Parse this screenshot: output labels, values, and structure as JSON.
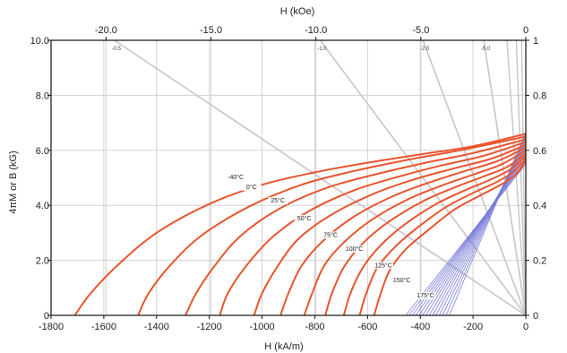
{
  "chart_data": {
    "type": "line",
    "title": "",
    "xlabel_bottom": "H (kA/m)",
    "xlabel_top": "H (kOe)",
    "ylabel_left": "4πM or B (kG)",
    "ylabel_right": "",
    "x_bottom_range": [
      -1800,
      0
    ],
    "x_bottom_ticks": [
      -1800,
      -1600,
      -1400,
      -1200,
      -1000,
      -800,
      -600,
      -400,
      -200,
      0
    ],
    "x_top_range": [
      -22.62,
      0
    ],
    "x_top_ticks": [
      -20.0,
      -15.0,
      -10.0,
      -5.0,
      0
    ],
    "x_top_tick_labels": [
      "-20.0",
      "-15.0",
      "-10.0",
      "-5.0",
      "0"
    ],
    "y_left_range": [
      0,
      10
    ],
    "y_left_ticks": [
      0,
      2,
      4,
      6,
      8,
      10
    ],
    "y_left_tick_labels": [
      "0",
      "2.0",
      "4.0",
      "6.0",
      "8.0",
      "10.0"
    ],
    "y_right_range": [
      0,
      1
    ],
    "y_right_ticks": [
      0,
      0.2,
      0.4,
      0.6,
      0.8,
      1
    ],
    "y_right_tick_labels": [
      "0",
      "0.2",
      "0.4",
      "0.6",
      "0.8",
      "1"
    ],
    "grid": true,
    "load_line_labels": [
      {
        "text": "-0.5",
        "x_koe": -19.6
      },
      {
        "text": "-1.0",
        "x_koe": -9.8
      },
      {
        "text": "-2.0",
        "x_koe": -4.9
      },
      {
        "text": "-5.0",
        "x_koe": -2.0
      }
    ],
    "intrinsic_series": [
      {
        "name": "-40°C",
        "label_at": [
          -1100,
          4.95
        ],
        "points": [
          [
            -1710,
            0
          ],
          [
            -1650,
            0.8
          ],
          [
            -1550,
            1.8
          ],
          [
            -1400,
            3.0
          ],
          [
            -1200,
            4.05
          ],
          [
            -1000,
            4.75
          ],
          [
            -800,
            5.2
          ],
          [
            -600,
            5.55
          ],
          [
            -400,
            5.85
          ],
          [
            -200,
            6.15
          ],
          [
            0,
            6.6
          ]
        ]
      },
      {
        "name": "0°C",
        "label_at": [
          -1040,
          4.6
        ],
        "points": [
          [
            -1470,
            0
          ],
          [
            -1430,
            0.8
          ],
          [
            -1350,
            1.8
          ],
          [
            -1230,
            2.9
          ],
          [
            -1050,
            3.95
          ],
          [
            -850,
            4.75
          ],
          [
            -650,
            5.25
          ],
          [
            -450,
            5.65
          ],
          [
            -250,
            6.0
          ],
          [
            0,
            6.5
          ]
        ]
      },
      {
        "name": "25°C",
        "label_at": [
          -940,
          4.1
        ],
        "points": [
          [
            -1290,
            0
          ],
          [
            -1250,
            0.8
          ],
          [
            -1180,
            1.8
          ],
          [
            -1080,
            2.9
          ],
          [
            -930,
            3.9
          ],
          [
            -750,
            4.65
          ],
          [
            -560,
            5.15
          ],
          [
            -380,
            5.55
          ],
          [
            -200,
            5.9
          ],
          [
            0,
            6.4
          ]
        ]
      },
      {
        "name": "50°C",
        "label_at": [
          -840,
          3.45
        ],
        "points": [
          [
            -1160,
            0
          ],
          [
            -1130,
            0.8
          ],
          [
            -1060,
            1.8
          ],
          [
            -960,
            2.85
          ],
          [
            -820,
            3.8
          ],
          [
            -650,
            4.55
          ],
          [
            -480,
            5.05
          ],
          [
            -320,
            5.45
          ],
          [
            -160,
            5.8
          ],
          [
            0,
            6.3
          ]
        ]
      },
      {
        "name": "75°C",
        "label_at": [
          -740,
          2.85
        ],
        "points": [
          [
            -1030,
            0
          ],
          [
            -1000,
            0.8
          ],
          [
            -940,
            1.8
          ],
          [
            -860,
            2.8
          ],
          [
            -730,
            3.7
          ],
          [
            -570,
            4.45
          ],
          [
            -420,
            4.95
          ],
          [
            -270,
            5.35
          ],
          [
            -130,
            5.7
          ],
          [
            0,
            6.2
          ]
        ]
      },
      {
        "name": "100°C",
        "label_at": [
          -650,
          2.35
        ],
        "points": [
          [
            -930,
            0
          ],
          [
            -900,
            0.8
          ],
          [
            -850,
            1.8
          ],
          [
            -770,
            2.7
          ],
          [
            -650,
            3.6
          ],
          [
            -500,
            4.35
          ],
          [
            -360,
            4.85
          ],
          [
            -230,
            5.25
          ],
          [
            -110,
            5.6
          ],
          [
            0,
            6.1
          ]
        ]
      },
      {
        "name": "125°C",
        "label_at": [
          -540,
          1.75
        ],
        "points": [
          [
            -840,
            0
          ],
          [
            -810,
            0.8
          ],
          [
            -765,
            1.8
          ],
          [
            -690,
            2.65
          ],
          [
            -580,
            3.5
          ],
          [
            -440,
            4.25
          ],
          [
            -310,
            4.75
          ],
          [
            -190,
            5.15
          ],
          [
            -90,
            5.5
          ],
          [
            0,
            6.0
          ]
        ]
      },
      {
        "name": "150°C",
        "label_at": [
          -470,
          1.2
        ],
        "points": [
          [
            -760,
            0
          ],
          [
            -735,
            0.8
          ],
          [
            -690,
            1.75
          ],
          [
            -620,
            2.6
          ],
          [
            -520,
            3.4
          ],
          [
            -390,
            4.15
          ],
          [
            -270,
            4.65
          ],
          [
            -160,
            5.05
          ],
          [
            -70,
            5.4
          ],
          [
            0,
            5.9
          ]
        ]
      },
      {
        "name": "175°C",
        "label_at": [
          -380,
          0.65
        ],
        "points": [
          [
            -690,
            0
          ],
          [
            -665,
            0.8
          ],
          [
            -620,
            1.7
          ],
          [
            -555,
            2.5
          ],
          [
            -460,
            3.3
          ],
          [
            -340,
            4.05
          ],
          [
            -230,
            4.55
          ],
          [
            -130,
            4.95
          ],
          [
            -60,
            5.3
          ],
          [
            0,
            5.8
          ]
        ]
      },
      {
        "name": "",
        "label_at": null,
        "points": [
          [
            -630,
            0
          ],
          [
            -605,
            0.8
          ],
          [
            -565,
            1.7
          ],
          [
            -500,
            2.45
          ],
          [
            -410,
            3.2
          ],
          [
            -300,
            3.95
          ],
          [
            -200,
            4.45
          ],
          [
            -110,
            4.85
          ],
          [
            -50,
            5.2
          ],
          [
            0,
            5.7
          ]
        ]
      },
      {
        "name": "",
        "label_at": null,
        "points": [
          [
            -575,
            0
          ],
          [
            -550,
            0.8
          ],
          [
            -515,
            1.65
          ],
          [
            -455,
            2.4
          ],
          [
            -370,
            3.1
          ],
          [
            -270,
            3.85
          ],
          [
            -175,
            4.35
          ],
          [
            -95,
            4.75
          ],
          [
            -40,
            5.1
          ],
          [
            0,
            5.6
          ]
        ]
      }
    ],
    "normal_curve_band": {
      "count": 14,
      "h_intercept_range": [
        -455,
        -290
      ],
      "b_intercept_range": [
        5.5,
        6.65
      ]
    },
    "colors": {
      "intrinsic": "#e8552f",
      "normal": "#7478d8",
      "load_line": "#c9c4c8",
      "grid": "#d2d2d2",
      "axis": "#111111"
    }
  }
}
